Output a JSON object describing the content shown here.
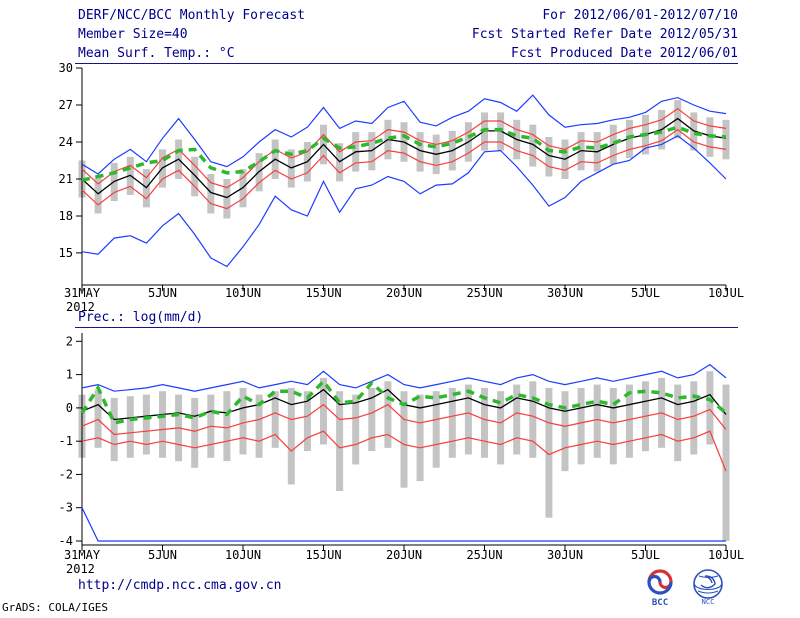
{
  "header": {
    "title": "DERF/NCC/BCC Monthly Forecast",
    "member_size": "Member Size=40",
    "for_range": "For 2012/06/01-2012/07/10",
    "refer_date": "Fcst Started Refer Date 2012/05/31",
    "produced_date": "Fcst Produced Date 2012/06/01"
  },
  "footer": {
    "url": "http://cmdp.ncc.cma.gov.cn",
    "bcc_logo_text": "BCC",
    "ncc_logo_text": "NCC",
    "grads_stamp": "GrADS: COLA/IGES"
  },
  "chart_data": [
    {
      "type": "line",
      "title": "Mean Surf. Temp.: °C",
      "xlabel": "",
      "ylabel": "",
      "grid": false,
      "legend": "none",
      "n_days": 41,
      "x_tick_labels": [
        "31MAY",
        "5JUN",
        "10JUN",
        "15JUN",
        "20JUN",
        "25JUN",
        "30JUN",
        "5JUL",
        "10JUL"
      ],
      "x_tick_days": [
        0,
        5,
        10,
        15,
        20,
        25,
        30,
        35,
        40
      ],
      "year_label": "2012",
      "y_ticks": [
        30,
        27,
        24,
        21,
        18,
        15
      ],
      "ylim": [
        12.4,
        30
      ],
      "bars": {
        "name": "ensemble-spread",
        "color": "#c4c4c4",
        "low": [
          19.5,
          18.2,
          19.2,
          19.7,
          18.7,
          20.3,
          21.0,
          19.6,
          18.2,
          17.8,
          18.7,
          20.0,
          21.0,
          20.3,
          20.8,
          22.2,
          20.8,
          21.6,
          21.7,
          22.6,
          22.4,
          21.6,
          21.4,
          21.7,
          22.4,
          23.3,
          23.3,
          22.6,
          22.0,
          21.2,
          21.0,
          21.7,
          21.6,
          22.2,
          22.7,
          23.0,
          23.4,
          24.3,
          23.3,
          22.8,
          22.6
        ],
        "high": [
          22.5,
          21.3,
          22.3,
          22.8,
          21.8,
          23.4,
          24.2,
          22.8,
          21.4,
          21.0,
          21.8,
          23.1,
          24.2,
          23.4,
          24.0,
          25.4,
          23.9,
          24.8,
          24.8,
          25.8,
          25.6,
          24.8,
          24.6,
          24.9,
          25.6,
          26.4,
          26.4,
          25.8,
          25.4,
          24.4,
          24.2,
          24.8,
          24.8,
          25.4,
          25.8,
          26.2,
          26.6,
          27.4,
          26.4,
          26.0,
          25.8
        ]
      },
      "series": [
        {
          "name": "ensemble-max",
          "color": "#1e3cff",
          "width": 1.2,
          "dash": null,
          "values": [
            22.2,
            21.4,
            22.6,
            23.4,
            22.4,
            24.3,
            25.9,
            24.2,
            22.4,
            22.0,
            22.8,
            24.0,
            25.0,
            24.4,
            25.2,
            26.8,
            25.1,
            25.7,
            25.5,
            26.8,
            27.3,
            25.6,
            25.3,
            26.0,
            26.5,
            27.5,
            27.2,
            26.5,
            27.8,
            26.2,
            25.2,
            25.4,
            25.5,
            25.8,
            26.0,
            26.4,
            27.3,
            27.6,
            27.0,
            26.5,
            26.3
          ]
        },
        {
          "name": "upper-quartile",
          "color": "#fa3c3c",
          "width": 1.2,
          "dash": null,
          "values": [
            21.8,
            20.6,
            21.6,
            22.1,
            21.1,
            22.7,
            23.4,
            22.1,
            20.7,
            20.3,
            21.1,
            22.4,
            23.4,
            22.7,
            23.2,
            24.6,
            23.2,
            24.0,
            24.1,
            25.0,
            24.8,
            24.1,
            23.8,
            24.1,
            24.8,
            25.7,
            25.7,
            25.0,
            24.6,
            23.7,
            23.4,
            24.1,
            24.0,
            24.6,
            25.1,
            25.4,
            25.8,
            26.7,
            25.7,
            25.3,
            25.1
          ]
        },
        {
          "name": "ensemble-mean",
          "color": "#000000",
          "width": 1.3,
          "dash": null,
          "values": [
            21.0,
            19.8,
            20.8,
            21.3,
            20.3,
            21.9,
            22.6,
            21.3,
            19.9,
            19.5,
            20.3,
            21.6,
            22.6,
            21.9,
            22.4,
            23.8,
            22.4,
            23.2,
            23.3,
            24.2,
            24.0,
            23.3,
            23.0,
            23.3,
            24.0,
            24.9,
            24.9,
            24.2,
            23.8,
            22.9,
            22.6,
            23.3,
            23.2,
            23.8,
            24.3,
            24.6,
            25.0,
            25.9,
            24.9,
            24.5,
            24.3
          ]
        },
        {
          "name": "lower-quartile",
          "color": "#fa3c3c",
          "width": 1.2,
          "dash": null,
          "values": [
            20.1,
            18.9,
            19.9,
            20.4,
            19.4,
            21.0,
            21.7,
            20.4,
            19.0,
            18.6,
            19.4,
            20.7,
            21.7,
            21.0,
            21.5,
            22.9,
            21.5,
            22.3,
            22.4,
            23.3,
            23.1,
            22.4,
            22.1,
            22.4,
            23.1,
            24.0,
            24.0,
            23.3,
            22.9,
            22.0,
            21.7,
            22.4,
            22.3,
            22.9,
            23.4,
            23.7,
            24.1,
            25.0,
            24.0,
            23.6,
            23.4
          ]
        },
        {
          "name": "ensemble-min",
          "color": "#1e3cff",
          "width": 1.2,
          "dash": null,
          "values": [
            15.1,
            14.9,
            16.2,
            16.4,
            15.8,
            17.2,
            18.2,
            16.5,
            14.6,
            13.9,
            15.5,
            17.3,
            19.6,
            18.5,
            18.0,
            20.8,
            18.3,
            20.2,
            20.5,
            21.2,
            20.8,
            19.8,
            20.5,
            20.6,
            21.5,
            23.2,
            23.3,
            22.0,
            20.5,
            18.8,
            19.5,
            20.8,
            21.5,
            22.2,
            22.5,
            23.5,
            23.8,
            24.5,
            23.5,
            22.3,
            21.0
          ]
        },
        {
          "name": "climatology-dashed",
          "color": "#2eb82e",
          "width": 3.5,
          "dash": "8 6",
          "values": [
            20.9,
            21.2,
            21.5,
            21.9,
            22.3,
            22.5,
            23.3,
            23.4,
            21.9,
            21.5,
            21.6,
            22.4,
            23.3,
            23.0,
            23.3,
            24.3,
            23.5,
            23.6,
            23.9,
            24.3,
            24.5,
            23.8,
            23.6,
            23.9,
            24.4,
            25.0,
            25.0,
            24.5,
            24.3,
            23.3,
            23.2,
            23.6,
            23.5,
            23.9,
            24.4,
            24.6,
            24.8,
            25.2,
            24.7,
            24.5,
            24.4
          ]
        }
      ]
    },
    {
      "type": "line",
      "title": "Prec.: log(mm/d)",
      "xlabel": "",
      "ylabel": "",
      "grid": false,
      "legend": "none",
      "n_days": 41,
      "x_tick_labels": [
        "31MAY",
        "5JUN",
        "10JUN",
        "15JUN",
        "20JUN",
        "25JUN",
        "30JUN",
        "5JUL",
        "10JUL"
      ],
      "x_tick_days": [
        0,
        5,
        10,
        15,
        20,
        25,
        30,
        35,
        40
      ],
      "year_label": "2012",
      "y_ticks": [
        2,
        1,
        0,
        -1,
        -2,
        -3,
        -4
      ],
      "ylim": [
        -4.12,
        2.25
      ],
      "bars": {
        "name": "ensemble-spread",
        "color": "#c4c4c4",
        "low": [
          -1.5,
          -1.2,
          -1.6,
          -1.5,
          -1.4,
          -1.5,
          -1.6,
          -1.8,
          -1.5,
          -1.6,
          -1.4,
          -1.5,
          -1.2,
          -2.3,
          -1.3,
          -1.1,
          -2.5,
          -1.7,
          -1.3,
          -1.2,
          -2.4,
          -2.2,
          -1.8,
          -1.5,
          -1.4,
          -1.5,
          -1.7,
          -1.4,
          -1.5,
          -3.3,
          -1.9,
          -1.7,
          -1.5,
          -1.7,
          -1.5,
          -1.3,
          -1.2,
          -1.6,
          -1.4,
          -1.1,
          -4.0
        ],
        "high": [
          0.4,
          0.55,
          0.3,
          0.35,
          0.4,
          0.5,
          0.4,
          0.3,
          0.4,
          0.5,
          0.6,
          0.4,
          0.5,
          0.6,
          0.5,
          0.9,
          0.5,
          0.4,
          0.6,
          0.8,
          0.5,
          0.4,
          0.5,
          0.6,
          0.7,
          0.6,
          0.5,
          0.7,
          0.8,
          0.6,
          0.5,
          0.6,
          0.7,
          0.6,
          0.7,
          0.8,
          0.9,
          0.7,
          0.8,
          1.1,
          0.7
        ]
      },
      "series": [
        {
          "name": "ensemble-max",
          "color": "#1e3cff",
          "width": 1.2,
          "dash": null,
          "values": [
            0.6,
            0.7,
            0.5,
            0.55,
            0.6,
            0.7,
            0.6,
            0.5,
            0.6,
            0.7,
            0.8,
            0.6,
            0.7,
            0.8,
            0.7,
            1.1,
            0.7,
            0.6,
            0.8,
            1.0,
            0.7,
            0.6,
            0.7,
            0.8,
            0.9,
            0.8,
            0.7,
            0.9,
            1.0,
            0.8,
            0.7,
            0.8,
            0.9,
            0.8,
            0.9,
            1.0,
            1.1,
            0.9,
            1.0,
            1.3,
            0.9
          ]
        },
        {
          "name": "ensemble-mean",
          "color": "#000000",
          "width": 1.3,
          "dash": null,
          "values": [
            -0.1,
            0.1,
            -0.35,
            -0.3,
            -0.25,
            -0.2,
            -0.15,
            -0.25,
            -0.1,
            -0.15,
            0.0,
            0.1,
            0.3,
            0.1,
            0.2,
            0.55,
            0.1,
            0.15,
            0.3,
            0.55,
            0.1,
            0.0,
            0.1,
            0.2,
            0.3,
            0.1,
            0.0,
            0.3,
            0.2,
            0.0,
            -0.1,
            0.0,
            0.1,
            0.0,
            0.1,
            0.2,
            0.3,
            0.1,
            0.2,
            0.4,
            -0.2
          ]
        },
        {
          "name": "upper-quartile",
          "color": "#fa3c3c",
          "width": 1.2,
          "dash": null,
          "values": [
            -0.55,
            -0.35,
            -0.8,
            -0.75,
            -0.7,
            -0.65,
            -0.6,
            -0.7,
            -0.55,
            -0.6,
            -0.45,
            -0.35,
            -0.15,
            -0.35,
            -0.25,
            0.1,
            -0.35,
            -0.3,
            -0.15,
            0.1,
            -0.35,
            -0.45,
            -0.35,
            -0.25,
            -0.15,
            -0.35,
            -0.45,
            -0.15,
            -0.25,
            -0.45,
            -0.55,
            -0.45,
            -0.35,
            -0.45,
            -0.35,
            -0.25,
            -0.15,
            -0.35,
            -0.25,
            -0.05,
            -0.65
          ]
        },
        {
          "name": "lower-quartile",
          "color": "#fa3c3c",
          "width": 1.2,
          "dash": null,
          "values": [
            -1.0,
            -0.9,
            -1.1,
            -1.0,
            -1.1,
            -1.0,
            -1.1,
            -1.2,
            -1.1,
            -1.0,
            -0.9,
            -1.0,
            -0.8,
            -1.3,
            -0.9,
            -0.7,
            -1.2,
            -1.1,
            -0.9,
            -0.8,
            -1.1,
            -1.2,
            -1.1,
            -1.0,
            -0.9,
            -1.0,
            -1.1,
            -0.9,
            -1.0,
            -1.4,
            -1.2,
            -1.1,
            -1.0,
            -1.1,
            -1.0,
            -0.9,
            -0.8,
            -1.0,
            -0.9,
            -0.7,
            -1.9
          ]
        },
        {
          "name": "ensemble-min",
          "color": "#1e3cff",
          "width": 1.2,
          "dash": null,
          "values": [
            -3.0,
            -4.0,
            -4.0,
            -4.0,
            -4.0,
            -4.0,
            -4.0,
            -4.0,
            -4.0,
            -4.0,
            -4.0,
            -4.0,
            -4.0,
            -4.0,
            -4.0,
            -4.0,
            -4.0,
            -4.0,
            -4.0,
            -4.0,
            -4.0,
            -4.0,
            -4.0,
            -4.0,
            -4.0,
            -4.0,
            -4.0,
            -4.0,
            -4.0,
            -4.0,
            -4.0,
            -4.0,
            -4.0,
            -4.0,
            -4.0,
            -4.0,
            -4.0,
            -4.0,
            -4.0,
            -4.0,
            -4.0
          ]
        },
        {
          "name": "climatology-dashed",
          "color": "#2eb82e",
          "width": 3.5,
          "dash": "8 6",
          "values": [
            -0.15,
            0.6,
            -0.45,
            -0.35,
            -0.3,
            -0.25,
            -0.2,
            -0.3,
            -0.1,
            -0.2,
            0.35,
            0.1,
            0.5,
            0.5,
            0.3,
            0.8,
            0.15,
            0.2,
            0.75,
            0.3,
            0.1,
            0.35,
            0.3,
            0.4,
            0.5,
            0.3,
            0.15,
            0.4,
            0.3,
            0.1,
            0.0,
            0.1,
            0.2,
            0.1,
            0.45,
            0.5,
            0.45,
            0.3,
            0.35,
            0.25,
            -0.15
          ]
        }
      ]
    }
  ]
}
